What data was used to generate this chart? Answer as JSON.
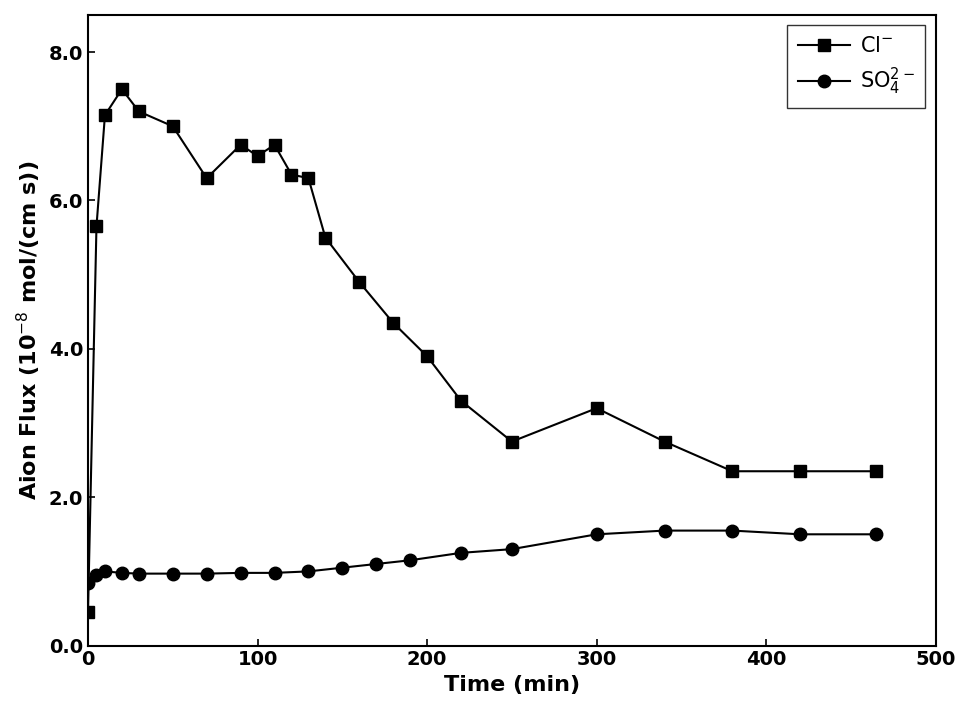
{
  "cl_x": [
    0,
    5,
    10,
    20,
    30,
    50,
    70,
    90,
    100,
    110,
    120,
    130,
    140,
    160,
    180,
    200,
    220,
    250,
    300,
    340,
    380,
    420,
    465
  ],
  "cl_y": [
    0.45,
    5.65,
    7.15,
    7.5,
    7.2,
    7.0,
    6.3,
    6.75,
    6.6,
    6.75,
    6.35,
    6.3,
    5.5,
    4.9,
    4.35,
    3.9,
    3.3,
    2.75,
    3.2,
    2.75,
    2.35,
    2.35,
    2.35
  ],
  "so4_x": [
    0,
    5,
    10,
    20,
    30,
    50,
    70,
    90,
    110,
    130,
    150,
    170,
    190,
    220,
    250,
    300,
    340,
    380,
    420,
    465
  ],
  "so4_y": [
    0.85,
    0.95,
    1.0,
    0.98,
    0.97,
    0.97,
    0.97,
    0.98,
    0.98,
    1.0,
    1.05,
    1.1,
    1.15,
    1.25,
    1.3,
    1.5,
    1.55,
    1.55,
    1.5,
    1.5
  ],
  "xlabel": "Time (min)",
  "xlim": [
    0,
    500
  ],
  "ylim": [
    0.0,
    8.5
  ],
  "xticks": [
    0,
    100,
    200,
    300,
    400,
    500
  ],
  "yticks": [
    0.0,
    2.0,
    4.0,
    6.0,
    8.0
  ],
  "line_color": "#000000",
  "marker_sq": "s",
  "marker_ci": "o",
  "legend_cl": "Cl$^{-}$",
  "legend_so4": "SO$_4^{2-}$",
  "fontsize_label": 16,
  "fontsize_tick": 14,
  "fontsize_legend": 15
}
